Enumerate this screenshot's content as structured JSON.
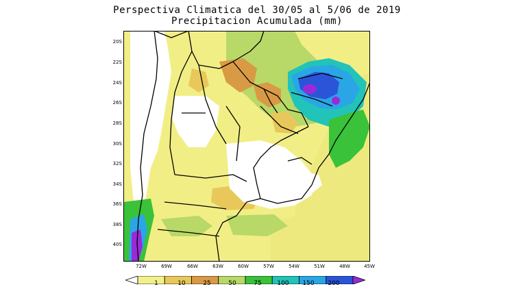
{
  "title": {
    "line1": "Perspectiva Climatica del 30/05 al 5/06 de 2019",
    "line2": "Precipitacion Acumulada (mm)"
  },
  "lat_labels": [
    "20S",
    "22S",
    "24S",
    "26S",
    "28S",
    "30S",
    "32S",
    "34S",
    "36S",
    "38S",
    "40S"
  ],
  "lon_labels": [
    "72W",
    "69W",
    "66W",
    "63W",
    "60W",
    "57W",
    "54W",
    "51W",
    "48W",
    "45W"
  ],
  "colorbar": {
    "levels": [
      "1",
      "10",
      "25",
      "50",
      "75",
      "100",
      "150",
      "200"
    ],
    "colors": [
      "#ffffff",
      "#f2f08a",
      "#e8c85a",
      "#d99a45",
      "#b7d968",
      "#39c23a",
      "#22c3b8",
      "#2aa6e6",
      "#2a55d8",
      "#9a2ad8"
    ]
  }
}
